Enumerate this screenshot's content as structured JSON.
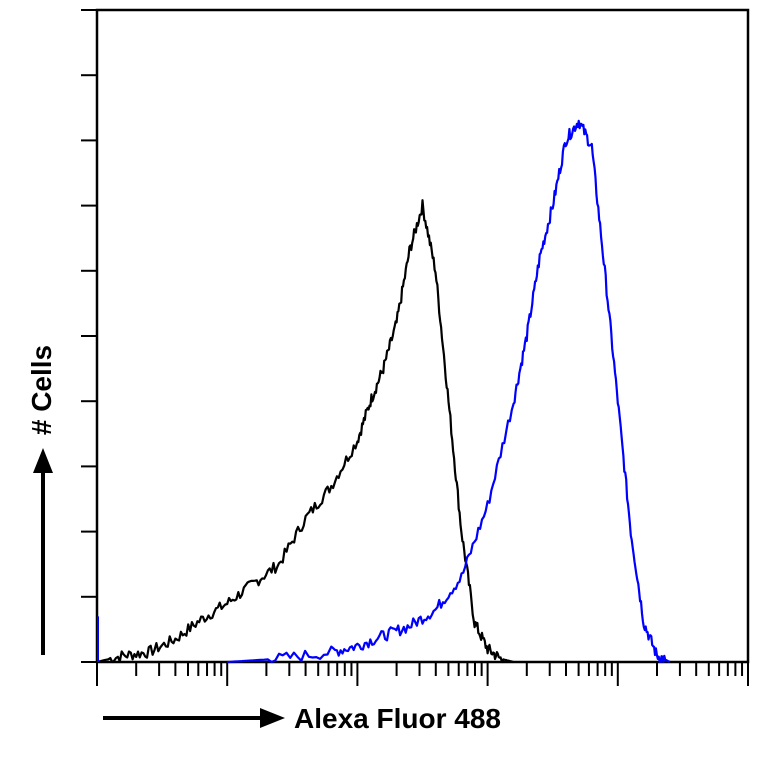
{
  "chart_data": {
    "type": "area",
    "xlabel": "Alexa Fluor 488",
    "ylabel": "# Cells",
    "x_scale": "log",
    "xlim": [
      1,
      100000
    ],
    "ylim": [
      0,
      1
    ],
    "grid": false,
    "legend": "none",
    "series": [
      {
        "color": "#000000",
        "x": [
          1,
          1.6,
          2.5,
          4,
          6.3,
          10,
          15.8,
          25,
          40,
          63,
          100,
          126,
          158,
          200,
          251,
          316,
          398,
          501,
          630,
          794,
          1000,
          1258,
          1585
        ],
        "y": [
          0.0,
          0.01,
          0.015,
          0.035,
          0.065,
          0.09,
          0.12,
          0.15,
          0.22,
          0.27,
          0.34,
          0.4,
          0.45,
          0.52,
          0.63,
          0.7,
          0.6,
          0.4,
          0.2,
          0.06,
          0.02,
          0.005,
          0.0
        ]
      },
      {
        "color": "#0000ff",
        "x": [
          10,
          25,
          63,
          100,
          158,
          251,
          398,
          630,
          1000,
          1585,
          2000,
          2512,
          3162,
          3981,
          5012,
          6310,
          7943,
          10000,
          12589,
          15849,
          19953,
          25119
        ],
        "y": [
          0.0,
          0.005,
          0.015,
          0.025,
          0.04,
          0.055,
          0.08,
          0.13,
          0.24,
          0.4,
          0.5,
          0.62,
          0.7,
          0.8,
          0.83,
          0.79,
          0.6,
          0.4,
          0.2,
          0.06,
          0.01,
          0.0
        ]
      }
    ]
  }
}
